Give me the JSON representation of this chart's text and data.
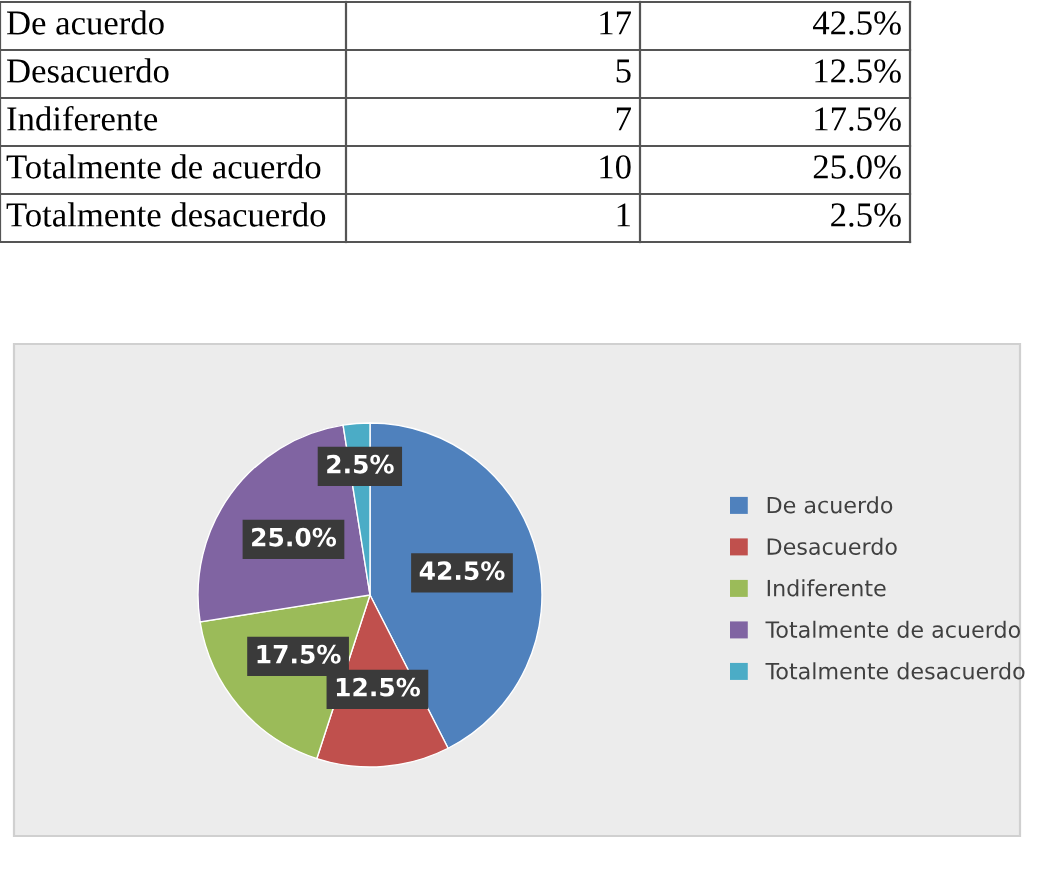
{
  "chart_data": {
    "type": "pie",
    "categories": [
      "De acuerdo",
      "Desacuerdo",
      "Indiferente",
      "Totalmente de acuerdo",
      "Totalmente desacuerdo"
    ],
    "values": [
      42.5,
      12.5,
      17.5,
      25.0,
      2.5
    ],
    "annotations": [
      "17",
      "5",
      "7",
      "10",
      "1"
    ],
    "value_labels": [
      "42.5%",
      "12.5%",
      "17.5%",
      "25.0%",
      "2.5%"
    ],
    "colors": [
      "#4f81bd",
      "#c0504d",
      "#9bbb59",
      "#8064a2",
      "#4bacc6"
    ],
    "legend": "right"
  }
}
